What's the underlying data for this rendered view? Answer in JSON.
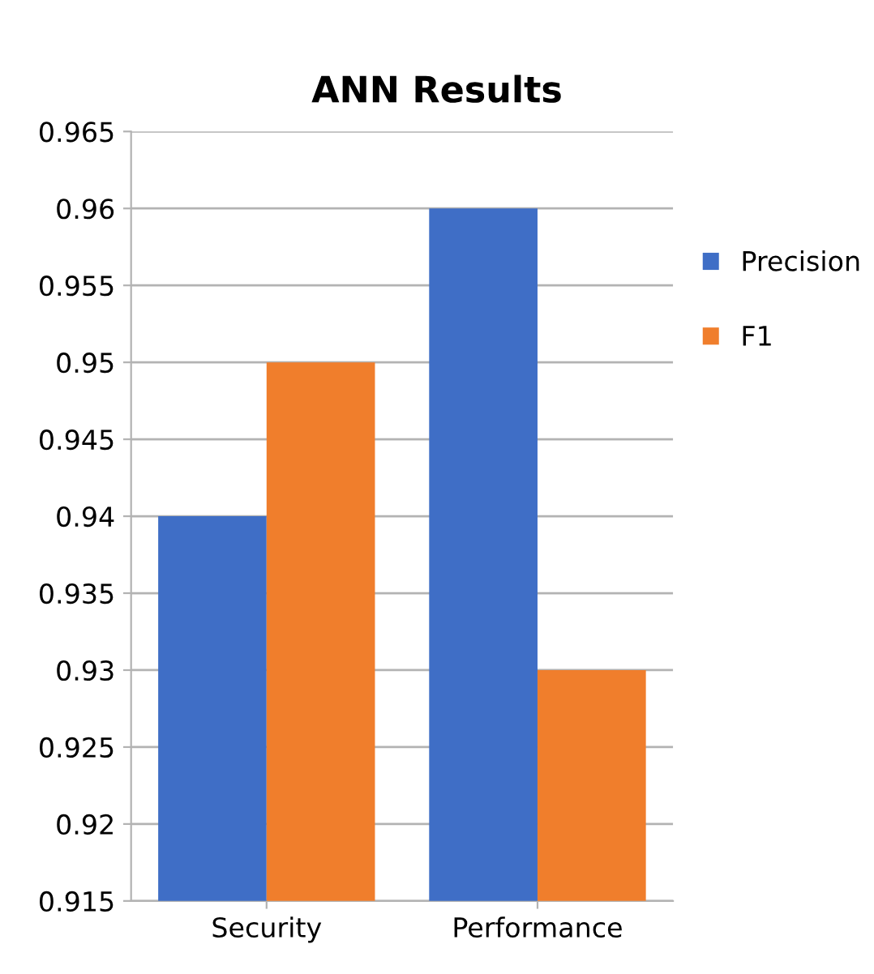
{
  "chart_data": {
    "type": "bar",
    "title": "ANN Results",
    "categories": [
      "Security",
      "Performance"
    ],
    "series": [
      {
        "name": "Precision",
        "color": "#3f6ec6",
        "values": [
          0.94,
          0.96
        ]
      },
      {
        "name": "F1",
        "color": "#f07e2c",
        "values": [
          0.95,
          0.93
        ]
      }
    ],
    "ylim": [
      0.915,
      0.965
    ],
    "yticks": [
      0.915,
      0.92,
      0.925,
      0.93,
      0.935,
      0.94,
      0.945,
      0.95,
      0.955,
      0.96,
      0.965
    ],
    "grid": "y",
    "legend": "right"
  }
}
